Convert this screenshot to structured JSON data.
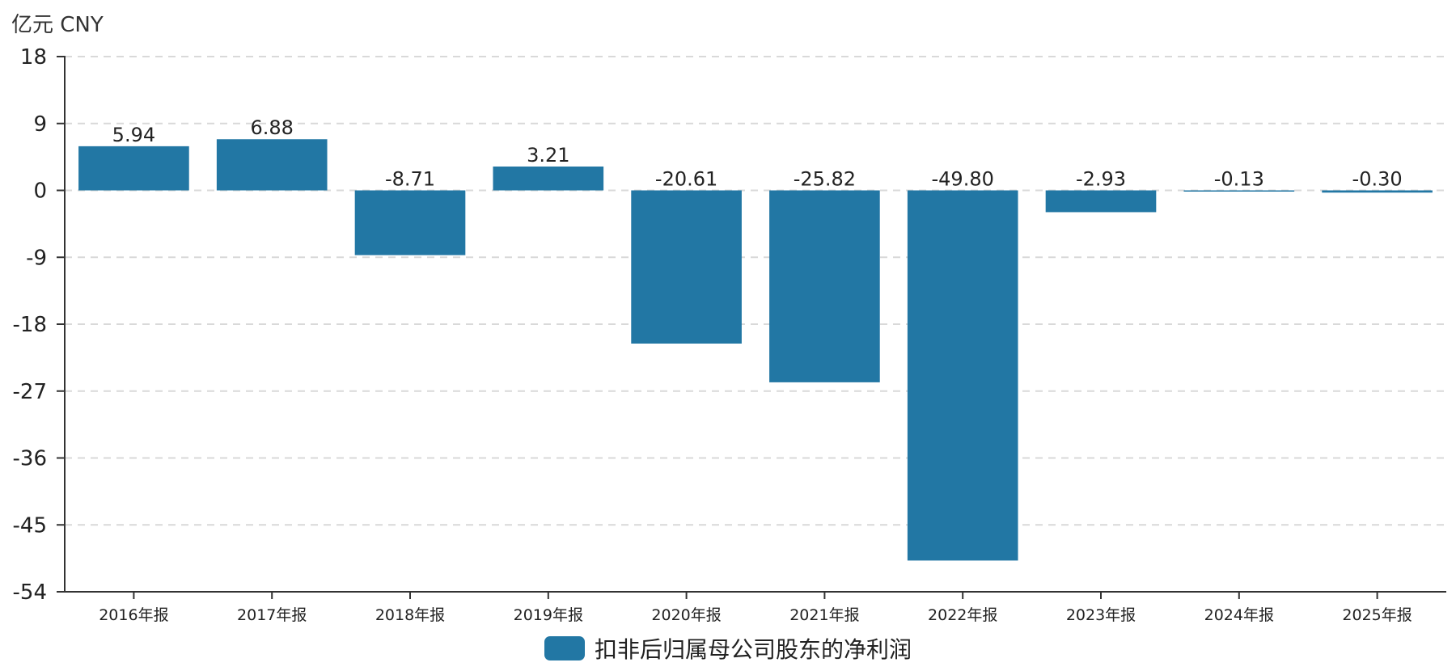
{
  "unit_label": "亿元  CNY",
  "colors": {
    "bar": "#2277a4",
    "axis": "#333333",
    "grid": "#d9d9d9",
    "text": "#222222"
  },
  "chart_data": {
    "type": "bar",
    "title": "",
    "xlabel": "",
    "ylabel": "亿元  CNY",
    "categories": [
      "2016年报",
      "2017年报",
      "2018年报",
      "2019年报",
      "2020年报",
      "2021年报",
      "2022年报",
      "2023年报",
      "2024年报",
      "2025年报"
    ],
    "series": [
      {
        "name": "扣非后归属母公司股东的净利润",
        "values": [
          5.94,
          6.88,
          -8.71,
          3.21,
          -20.61,
          -25.82,
          -49.8,
          -2.93,
          -0.13,
          -0.3
        ],
        "labels": [
          "5.94",
          "6.88",
          "-8.71",
          "3.21",
          "-20.61",
          "-25.82",
          "-49.80",
          "-2.93",
          "-0.13",
          "-0.30"
        ]
      }
    ],
    "ylim": [
      -54,
      18
    ],
    "yticks": [
      18,
      9,
      0,
      -9,
      -18,
      -27,
      -36,
      -45,
      -54
    ],
    "grid": true,
    "legend_position": "bottom-center"
  }
}
